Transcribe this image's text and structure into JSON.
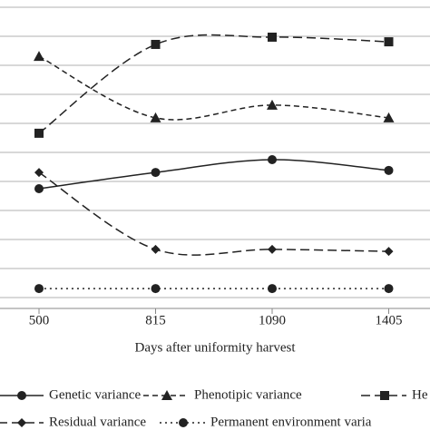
{
  "chart_data": {
    "type": "line",
    "x_label": "Days after uniformity harvest",
    "categories": [
      "500",
      "815",
      "1090",
      "1405"
    ],
    "ylim": [
      0,
      10
    ],
    "yticks": [
      0,
      1,
      2,
      3,
      4,
      5,
      6,
      7,
      8,
      9,
      10
    ],
    "grid": true,
    "series": [
      {
        "name": "Genetic variance",
        "color": "#222222",
        "dash": "solid",
        "marker": "circle",
        "values": [
          3.75,
          4.31,
          4.75,
          4.38
        ]
      },
      {
        "name": "Phenotipic variance",
        "color": "#222222",
        "dash": "dash",
        "marker": "triangle",
        "values": [
          8.31,
          6.19,
          6.63,
          6.19
        ]
      },
      {
        "name": "He",
        "color": "#222222",
        "dash": "longdash",
        "marker": "square",
        "values": [
          5.66,
          8.72,
          8.97,
          8.81
        ]
      },
      {
        "name": "Residual variance",
        "color": "#222222",
        "dash": "longdash",
        "marker": "diamond",
        "values": [
          4.31,
          1.66,
          1.66,
          1.59
        ]
      },
      {
        "name": "Permanent environment varia",
        "color": "#222222",
        "dash": "dot",
        "marker": "circle",
        "values": [
          0.31,
          0.31,
          0.31,
          0.31
        ]
      }
    ]
  }
}
